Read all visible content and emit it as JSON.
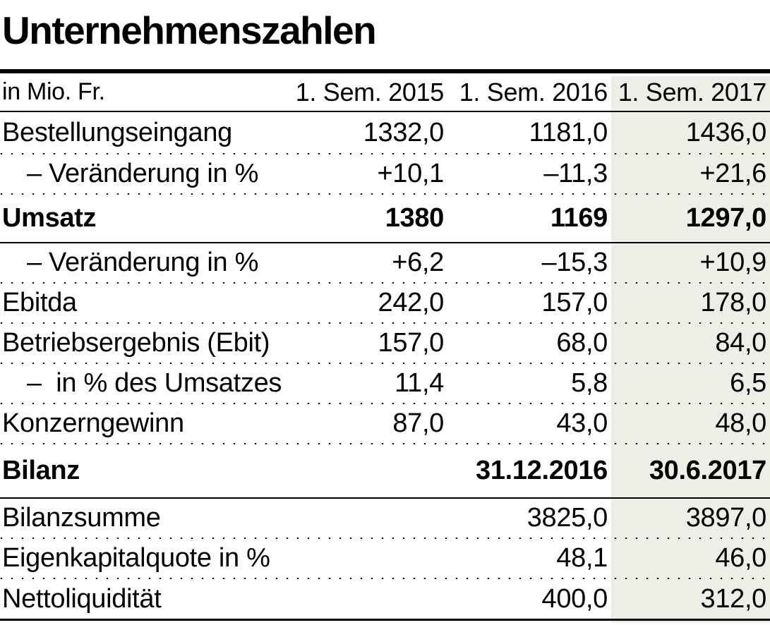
{
  "title": "Unternehmenszahlen",
  "table": {
    "unit_label": "in Mio. Fr.",
    "col_headers": [
      "1. Sem. 2015",
      "1. Sem. 2016",
      "1. Sem. 2017"
    ],
    "highlight_color": "#efeee6",
    "rows": [
      {
        "label": "Bestellungseingang",
        "values": [
          "1332,0",
          "1181,0",
          "1436,0"
        ]
      },
      {
        "label": "– Veränderung in %",
        "values": [
          "+10,1",
          "–11,3",
          "+21,6"
        ]
      },
      {
        "label": "Umsatz",
        "values": [
          "1380",
          "1169",
          "1297,0"
        ]
      },
      {
        "label": "– Veränderung in %",
        "values": [
          "+6,2",
          "–15,3",
          "+10,9"
        ]
      },
      {
        "label": "Ebitda",
        "values": [
          "242,0",
          "157,0",
          "178,0"
        ]
      },
      {
        "label": "Betriebsergebnis (Ebit)",
        "values": [
          "157,0",
          "68,0",
          "84,0"
        ]
      },
      {
        "label": "–  in % des Umsatzes",
        "values": [
          "11,4",
          "5,8",
          "6,5"
        ]
      },
      {
        "label": "Konzerngewinn",
        "values": [
          "87,0",
          "43,0",
          "48,0"
        ]
      },
      {
        "label": "Bilanz",
        "values": [
          "",
          "31.12.2016",
          "30.6.2017"
        ]
      },
      {
        "label": "Bilanzsumme",
        "values": [
          "",
          "3825,0",
          "3897,0"
        ]
      },
      {
        "label": "Eigenkapitalquote in %",
        "values": [
          "",
          "48,1",
          "46,0"
        ]
      },
      {
        "label": "Nettoliquidität",
        "values": [
          "",
          "400,0",
          "312,0"
        ]
      }
    ]
  },
  "chart_data": {
    "type": "table",
    "title": "Unternehmenszahlen",
    "unit": "in Mio. Fr.",
    "columns": [
      "1. Sem. 2015",
      "1. Sem. 2016",
      "1. Sem. 2017"
    ],
    "highlighted_column": "1. Sem. 2017",
    "rows": [
      {
        "label": "Bestellungseingang",
        "values": [
          1332.0,
          1181.0,
          1436.0
        ]
      },
      {
        "label": "Veränderung in %",
        "values": [
          10.1,
          -11.3,
          21.6
        ]
      },
      {
        "label": "Umsatz",
        "bold": true,
        "values": [
          1380,
          1169,
          1297.0
        ]
      },
      {
        "label": "Veränderung in %",
        "values": [
          6.2,
          -15.3,
          10.9
        ]
      },
      {
        "label": "Ebitda",
        "values": [
          242.0,
          157.0,
          178.0
        ]
      },
      {
        "label": "Betriebsergebnis (Ebit)",
        "values": [
          157.0,
          68.0,
          84.0
        ]
      },
      {
        "label": "in % des Umsatzes",
        "values": [
          11.4,
          5.8,
          6.5
        ]
      },
      {
        "label": "Konzerngewinn",
        "values": [
          87.0,
          43.0,
          48.0
        ]
      },
      {
        "label": "Bilanz",
        "bold": true,
        "section_columns": [
          "31.12.2016",
          "30.6.2017"
        ],
        "values": [
          null,
          null,
          null
        ]
      },
      {
        "label": "Bilanzsumme",
        "values": [
          null,
          3825.0,
          3897.0
        ]
      },
      {
        "label": "Eigenkapitalquote in %",
        "values": [
          null,
          48.1,
          46.0
        ]
      },
      {
        "label": "Nettoliquidität",
        "values": [
          null,
          400.0,
          312.0
        ]
      }
    ]
  }
}
